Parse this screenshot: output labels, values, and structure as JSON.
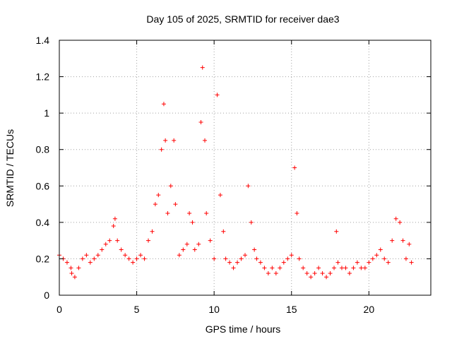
{
  "chart_data": {
    "type": "scatter",
    "title": "Day 105 of 2025, SRMTID for receiver dae3",
    "xlabel": "GPS time / hours",
    "ylabel": "SRMTID / TECUs",
    "xlim": [
      0,
      24
    ],
    "ylim": [
      0,
      1.4
    ],
    "xticks": [
      0,
      5,
      10,
      15,
      20
    ],
    "xtick_labels": [
      "0",
      "5",
      "10",
      "15",
      "20"
    ],
    "yticks": [
      0,
      0.2,
      0.4,
      0.6,
      0.8,
      1.0,
      1.2,
      1.4
    ],
    "ytick_labels": [
      "0",
      "0.2",
      "0.4",
      "0.6",
      "0.8",
      "1",
      "1.2",
      "1.4"
    ],
    "grid": true,
    "marker": "plus",
    "color": "#ff0000",
    "x": [
      0.0,
      0.25,
      0.5,
      0.75,
      0.8,
      1.0,
      1.25,
      1.5,
      1.75,
      2.0,
      2.25,
      2.5,
      2.75,
      3.0,
      3.25,
      3.5,
      3.6,
      3.75,
      4.0,
      4.25,
      4.5,
      4.75,
      5.0,
      5.25,
      5.5,
      5.75,
      6.0,
      6.2,
      6.4,
      6.6,
      6.75,
      6.85,
      7.0,
      7.2,
      7.4,
      7.5,
      7.75,
      8.0,
      8.25,
      8.4,
      8.6,
      8.75,
      9.0,
      9.15,
      9.25,
      9.4,
      9.5,
      9.75,
      10.0,
      10.2,
      10.4,
      10.6,
      10.75,
      11.0,
      11.25,
      11.5,
      11.75,
      12.0,
      12.2,
      12.4,
      12.6,
      12.75,
      13.0,
      13.25,
      13.5,
      13.75,
      14.0,
      14.25,
      14.5,
      14.75,
      15.0,
      15.2,
      15.35,
      15.5,
      15.75,
      16.0,
      16.25,
      16.5,
      16.75,
      17.0,
      17.25,
      17.5,
      17.75,
      17.9,
      18.0,
      18.25,
      18.5,
      18.75,
      19.0,
      19.25,
      19.5,
      19.75,
      20.0,
      20.25,
      20.5,
      20.75,
      21.0,
      21.25,
      21.5,
      21.75,
      22.0,
      22.2,
      22.4,
      22.6,
      22.75
    ],
    "y": [
      0.22,
      0.2,
      0.18,
      0.15,
      0.12,
      0.1,
      0.15,
      0.2,
      0.22,
      0.18,
      0.2,
      0.22,
      0.25,
      0.28,
      0.3,
      0.38,
      0.42,
      0.3,
      0.25,
      0.22,
      0.2,
      0.18,
      0.2,
      0.22,
      0.2,
      0.3,
      0.35,
      0.5,
      0.55,
      0.8,
      1.05,
      0.85,
      0.45,
      0.6,
      0.85,
      0.5,
      0.22,
      0.25,
      0.28,
      0.45,
      0.4,
      0.25,
      0.28,
      0.95,
      1.25,
      0.85,
      0.45,
      0.3,
      0.2,
      1.1,
      0.55,
      0.35,
      0.2,
      0.18,
      0.15,
      0.18,
      0.2,
      0.22,
      0.6,
      0.4,
      0.25,
      0.2,
      0.18,
      0.15,
      0.12,
      0.15,
      0.12,
      0.15,
      0.18,
      0.2,
      0.22,
      0.7,
      0.45,
      0.2,
      0.15,
      0.12,
      0.1,
      0.12,
      0.15,
      0.12,
      0.1,
      0.12,
      0.15,
      0.35,
      0.18,
      0.15,
      0.15,
      0.12,
      0.15,
      0.18,
      0.15,
      0.15,
      0.18,
      0.2,
      0.22,
      0.25,
      0.2,
      0.18,
      0.3,
      0.42,
      0.4,
      0.3,
      0.2,
      0.28,
      0.18
    ]
  }
}
